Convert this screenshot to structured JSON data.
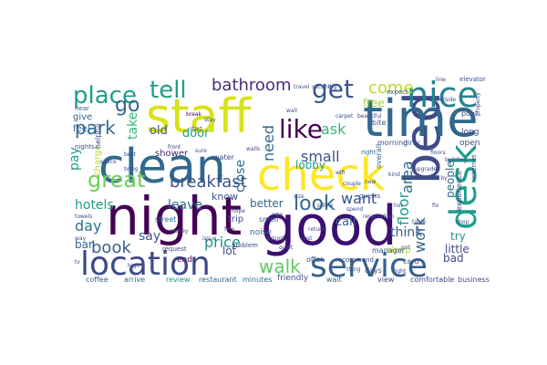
{
  "word_cloud": {
    "colormap": "viridis",
    "words": [
      {
        "text": "night",
        "color": "#440154"
      },
      {
        "text": "good",
        "color": "#3b0f70"
      },
      {
        "text": "bed",
        "color": "#3e4a89"
      },
      {
        "text": "clean",
        "color": "#31688e"
      },
      {
        "text": "check",
        "color": "#fde725"
      },
      {
        "text": "staff",
        "color": "#d8e219"
      },
      {
        "text": "time",
        "color": "#31688e"
      },
      {
        "text": "location",
        "color": "#3e4989"
      },
      {
        "text": "service",
        "color": "#35608d"
      },
      {
        "text": "nice",
        "color": "#26828e"
      },
      {
        "text": "desk",
        "color": "#1f9e89"
      },
      {
        "text": "like",
        "color": "#440154"
      },
      {
        "text": "place",
        "color": "#1f9e89"
      },
      {
        "text": "tell",
        "color": "#1f9e89"
      },
      {
        "text": "get",
        "color": "#39568c"
      },
      {
        "text": "bathroom",
        "color": "#472d7b"
      },
      {
        "text": "breakfast",
        "color": "#3b528b"
      },
      {
        "text": "great",
        "color": "#6ece58"
      },
      {
        "text": "park",
        "color": "#31688e"
      },
      {
        "text": "look",
        "color": "#31688e"
      },
      {
        "text": "area",
        "color": "#31688e"
      },
      {
        "text": "floor",
        "color": "#1f9e89"
      },
      {
        "text": "work",
        "color": "#31688e"
      },
      {
        "text": "book",
        "color": "#35608d"
      },
      {
        "text": "day",
        "color": "#2c728e"
      },
      {
        "text": "walk",
        "color": "#5ec962"
      },
      {
        "text": "price",
        "color": "#21918c"
      },
      {
        "text": "go",
        "color": "#31688e"
      },
      {
        "text": "small",
        "color": "#3b528b"
      },
      {
        "text": "ask",
        "color": "#35b779"
      },
      {
        "text": "come",
        "color": "#b5de2b"
      },
      {
        "text": "want",
        "color": "#3b528b"
      },
      {
        "text": "need",
        "color": "#31688e"
      },
      {
        "text": "say",
        "color": "#3b528b"
      },
      {
        "text": "hotels",
        "color": "#1f9e89"
      },
      {
        "text": "leave",
        "color": "#2c728e"
      },
      {
        "text": "try",
        "color": "#21918c"
      },
      {
        "text": "think",
        "color": "#35608d"
      },
      {
        "text": "pay",
        "color": "#1f9e89"
      },
      {
        "text": "take",
        "color": "#35b779"
      },
      {
        "text": "old",
        "color": "#3b528b"
      },
      {
        "text": "door",
        "color": "#1f9e89"
      },
      {
        "text": "free",
        "color": "#a2da37"
      },
      {
        "text": "close",
        "color": "#31688e"
      },
      {
        "text": "lot",
        "color": "#3b528b"
      },
      {
        "text": "call",
        "color": "#31688e"
      },
      {
        "text": "little",
        "color": "#3e4a89"
      },
      {
        "text": "people",
        "color": "#31688e"
      },
      {
        "text": "shower",
        "color": "#482878"
      },
      {
        "text": "lobby",
        "color": "#1f9e89"
      },
      {
        "text": "better",
        "color": "#31688e"
      },
      {
        "text": "charge",
        "color": "#b5de2b"
      },
      {
        "text": "know",
        "color": "#3b528b"
      },
      {
        "text": "bar",
        "color": "#31688e"
      },
      {
        "text": "give",
        "color": "#35608d"
      },
      {
        "text": "feel",
        "color": "#35608d"
      },
      {
        "text": "sleep",
        "color": "#b5de2b"
      },
      {
        "text": "open",
        "color": "#3e4a89"
      },
      {
        "text": "bad",
        "color": "#3e4a89"
      },
      {
        "text": "long",
        "color": "#3e4a89"
      },
      {
        "text": "noise",
        "color": "#35608d"
      },
      {
        "text": "trip",
        "color": "#3b528b"
      },
      {
        "text": "end",
        "color": "#440154"
      },
      {
        "text": "friendly",
        "color": "#3b528b"
      },
      {
        "text": "coffee",
        "color": "#35608d"
      },
      {
        "text": "arrive",
        "color": "#2c728e"
      },
      {
        "text": "review",
        "color": "#21918c"
      },
      {
        "text": "restaurant",
        "color": "#31688e"
      },
      {
        "text": "minutes",
        "color": "#31688e"
      },
      {
        "text": "wait",
        "color": "#31688e"
      },
      {
        "text": "view",
        "color": "#3e4a89"
      },
      {
        "text": "comfortable",
        "color": "#3e4a89"
      },
      {
        "text": "business",
        "color": "#3e4a89"
      },
      {
        "text": "days",
        "color": "#3e4a89"
      },
      {
        "text": "offer",
        "color": "#3b528b"
      },
      {
        "text": "card",
        "color": "#3b528b"
      },
      {
        "text": "manager",
        "color": "#3b528b"
      },
      {
        "text": "helpful",
        "color": "#3e4a89"
      },
      {
        "text": "water",
        "color": "#3e4a89"
      },
      {
        "text": "street",
        "color": "#2c728e"
      },
      {
        "text": "nights",
        "color": "#3e4a89"
      },
      {
        "text": "hear",
        "color": "#3b528b"
      },
      {
        "text": "morning",
        "color": "#3b528b"
      },
      {
        "text": "dirty",
        "color": "#3b528b"
      },
      {
        "text": "overall",
        "color": "#31688e"
      },
      {
        "text": "experience",
        "color": "#3e4a89"
      },
      {
        "text": "internet",
        "color": "#3e4a89"
      },
      {
        "text": "guests",
        "color": "#3b528b"
      },
      {
        "text": "pool",
        "color": "#3b528b"
      },
      {
        "text": "right",
        "color": "#31688e"
      },
      {
        "text": "expect",
        "color": "#3b528b"
      },
      {
        "text": "problem",
        "color": "#3e4a89"
      },
      {
        "text": "request",
        "color": "#3e4a89"
      },
      {
        "text": "smell",
        "color": "#3b528b"
      },
      {
        "text": "recommend",
        "color": "#3e4a89"
      },
      {
        "text": "elevator",
        "color": "#3b528b"
      },
      {
        "text": "bite",
        "color": "#3b528b"
      },
      {
        "text": "break",
        "color": "#440154"
      },
      {
        "text": "stay",
        "color": "#3b528b"
      },
      {
        "text": "line",
        "color": "#3e4a89"
      },
      {
        "text": "travel",
        "color": "#3b528b"
      },
      {
        "text": "second",
        "color": "#3b528b"
      },
      {
        "text": "big",
        "color": "#3b528b"
      },
      {
        "text": "outside",
        "color": "#3b528b"
      },
      {
        "text": "property",
        "color": "#3e4a89"
      },
      {
        "text": "tv",
        "color": "#3b528b"
      },
      {
        "text": "airport",
        "color": "#3e4a89"
      },
      {
        "text": "cost",
        "color": "#3e4a89"
      },
      {
        "text": "shop",
        "color": "#3b528b"
      },
      {
        "text": "towels",
        "color": "#3e4a89"
      },
      {
        "text": "start",
        "color": "#3e4a89"
      },
      {
        "text": "rate",
        "color": "#3e4a89"
      },
      {
        "text": "return",
        "color": "#3e4a89"
      },
      {
        "text": "hope",
        "color": "#3e4a89"
      },
      {
        "text": "thing",
        "color": "#3e4a89"
      },
      {
        "text": "light",
        "color": "#3e4a89"
      },
      {
        "text": "high",
        "color": "#3e4a89"
      },
      {
        "text": "way",
        "color": "#3e4a89"
      },
      {
        "text": "best",
        "color": "#3e4a89"
      },
      {
        "text": "size",
        "color": "#3e4a89"
      },
      {
        "text": "fine",
        "color": "#3e4a89"
      },
      {
        "text": "quiet",
        "color": "#3e4a89"
      },
      {
        "text": "issue",
        "color": "#3e4a89"
      },
      {
        "text": "pillow",
        "color": "#3e4a89"
      },
      {
        "text": "spend",
        "color": "#3e4a89"
      },
      {
        "text": "reservation",
        "color": "#3e4a89"
      },
      {
        "text": "table",
        "color": "#3e4a89"
      },
      {
        "text": "hot",
        "color": "#3e4a89"
      },
      {
        "text": "not",
        "color": "#3e4a89"
      },
      {
        "text": "money",
        "color": "#3e4a89"
      },
      {
        "text": "floors",
        "color": "#3e4a89"
      },
      {
        "text": "building",
        "color": "#3e4a89"
      },
      {
        "text": "carpet",
        "color": "#3e4a89"
      },
      {
        "text": "beautiful",
        "color": "#3e4a89"
      },
      {
        "text": "wall",
        "color": "#3e4a89"
      },
      {
        "text": "front",
        "color": "#3e4a89"
      },
      {
        "text": "walls",
        "color": "#3e4a89"
      },
      {
        "text": "sure",
        "color": "#3e4a89"
      },
      {
        "text": "upgrade",
        "color": "#3e4a89"
      },
      {
        "text": "close by",
        "color": "#3e4a89"
      },
      {
        "text": "kind",
        "color": "#3e4a89"
      },
      {
        "text": "wifi",
        "color": "#3e4a89"
      },
      {
        "text": "couple",
        "color": "#3e4a89"
      },
      {
        "text": "new",
        "color": "#3e4a89"
      },
      {
        "text": "bring",
        "color": "#3e4a89"
      },
      {
        "text": "space",
        "color": "#3e4a89"
      },
      {
        "text": "fix",
        "color": "#3e4a89"
      }
    ]
  }
}
